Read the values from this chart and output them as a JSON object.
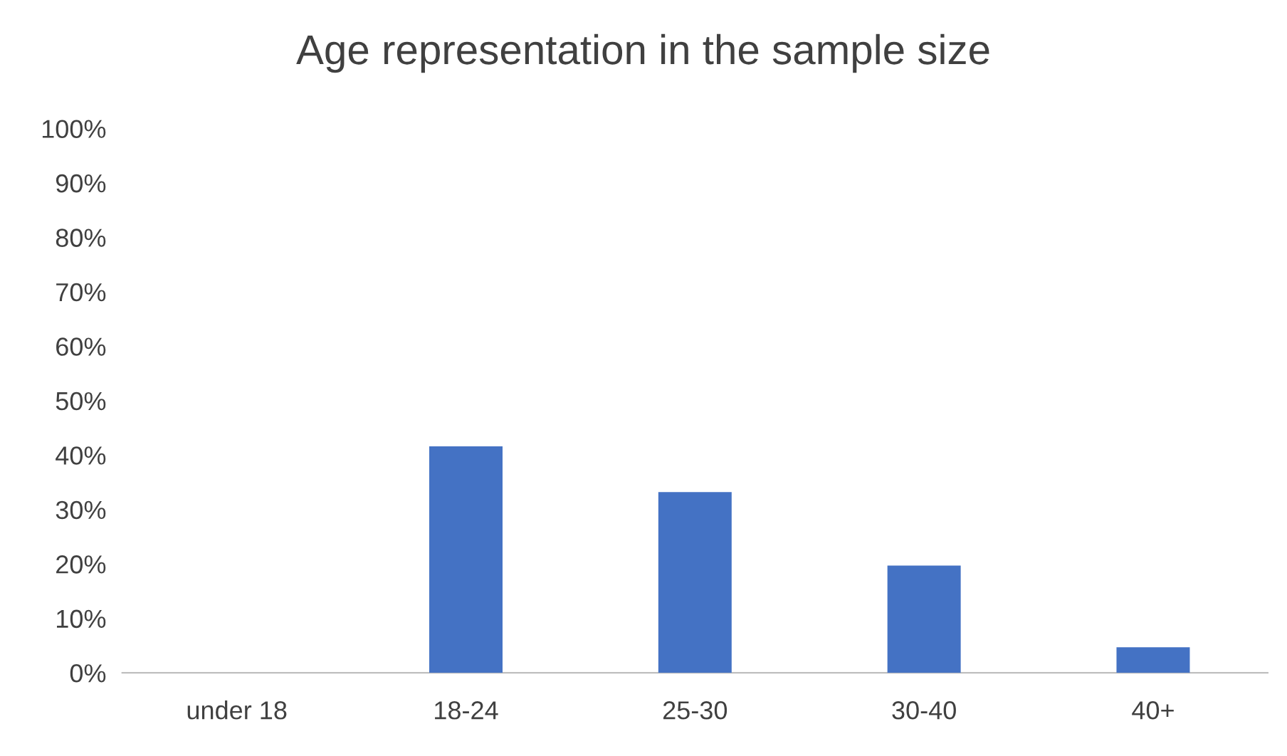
{
  "chart_data": {
    "type": "bar",
    "title": "Age representation in the sample size",
    "categories": [
      "under 18",
      "18-24",
      "25-30",
      "30-40",
      "40+"
    ],
    "values": [
      0,
      0.416,
      0.332,
      0.197,
      0.047
    ],
    "color": "#4472c4",
    "ylim": [
      0,
      1
    ],
    "yticks": [
      {
        "value": 0,
        "label": "0%"
      },
      {
        "value": 0.1,
        "label": "10%"
      },
      {
        "value": 0.2,
        "label": "20%"
      },
      {
        "value": 0.3,
        "label": "30%"
      },
      {
        "value": 0.4,
        "label": "40%"
      },
      {
        "value": 0.5,
        "label": "50%"
      },
      {
        "value": 0.6,
        "label": "60%"
      },
      {
        "value": 0.7,
        "label": "70%"
      },
      {
        "value": 0.8,
        "label": "80%"
      },
      {
        "value": 0.9,
        "label": "90%"
      },
      {
        "value": 1,
        "label": "100%"
      }
    ],
    "grid": false
  }
}
